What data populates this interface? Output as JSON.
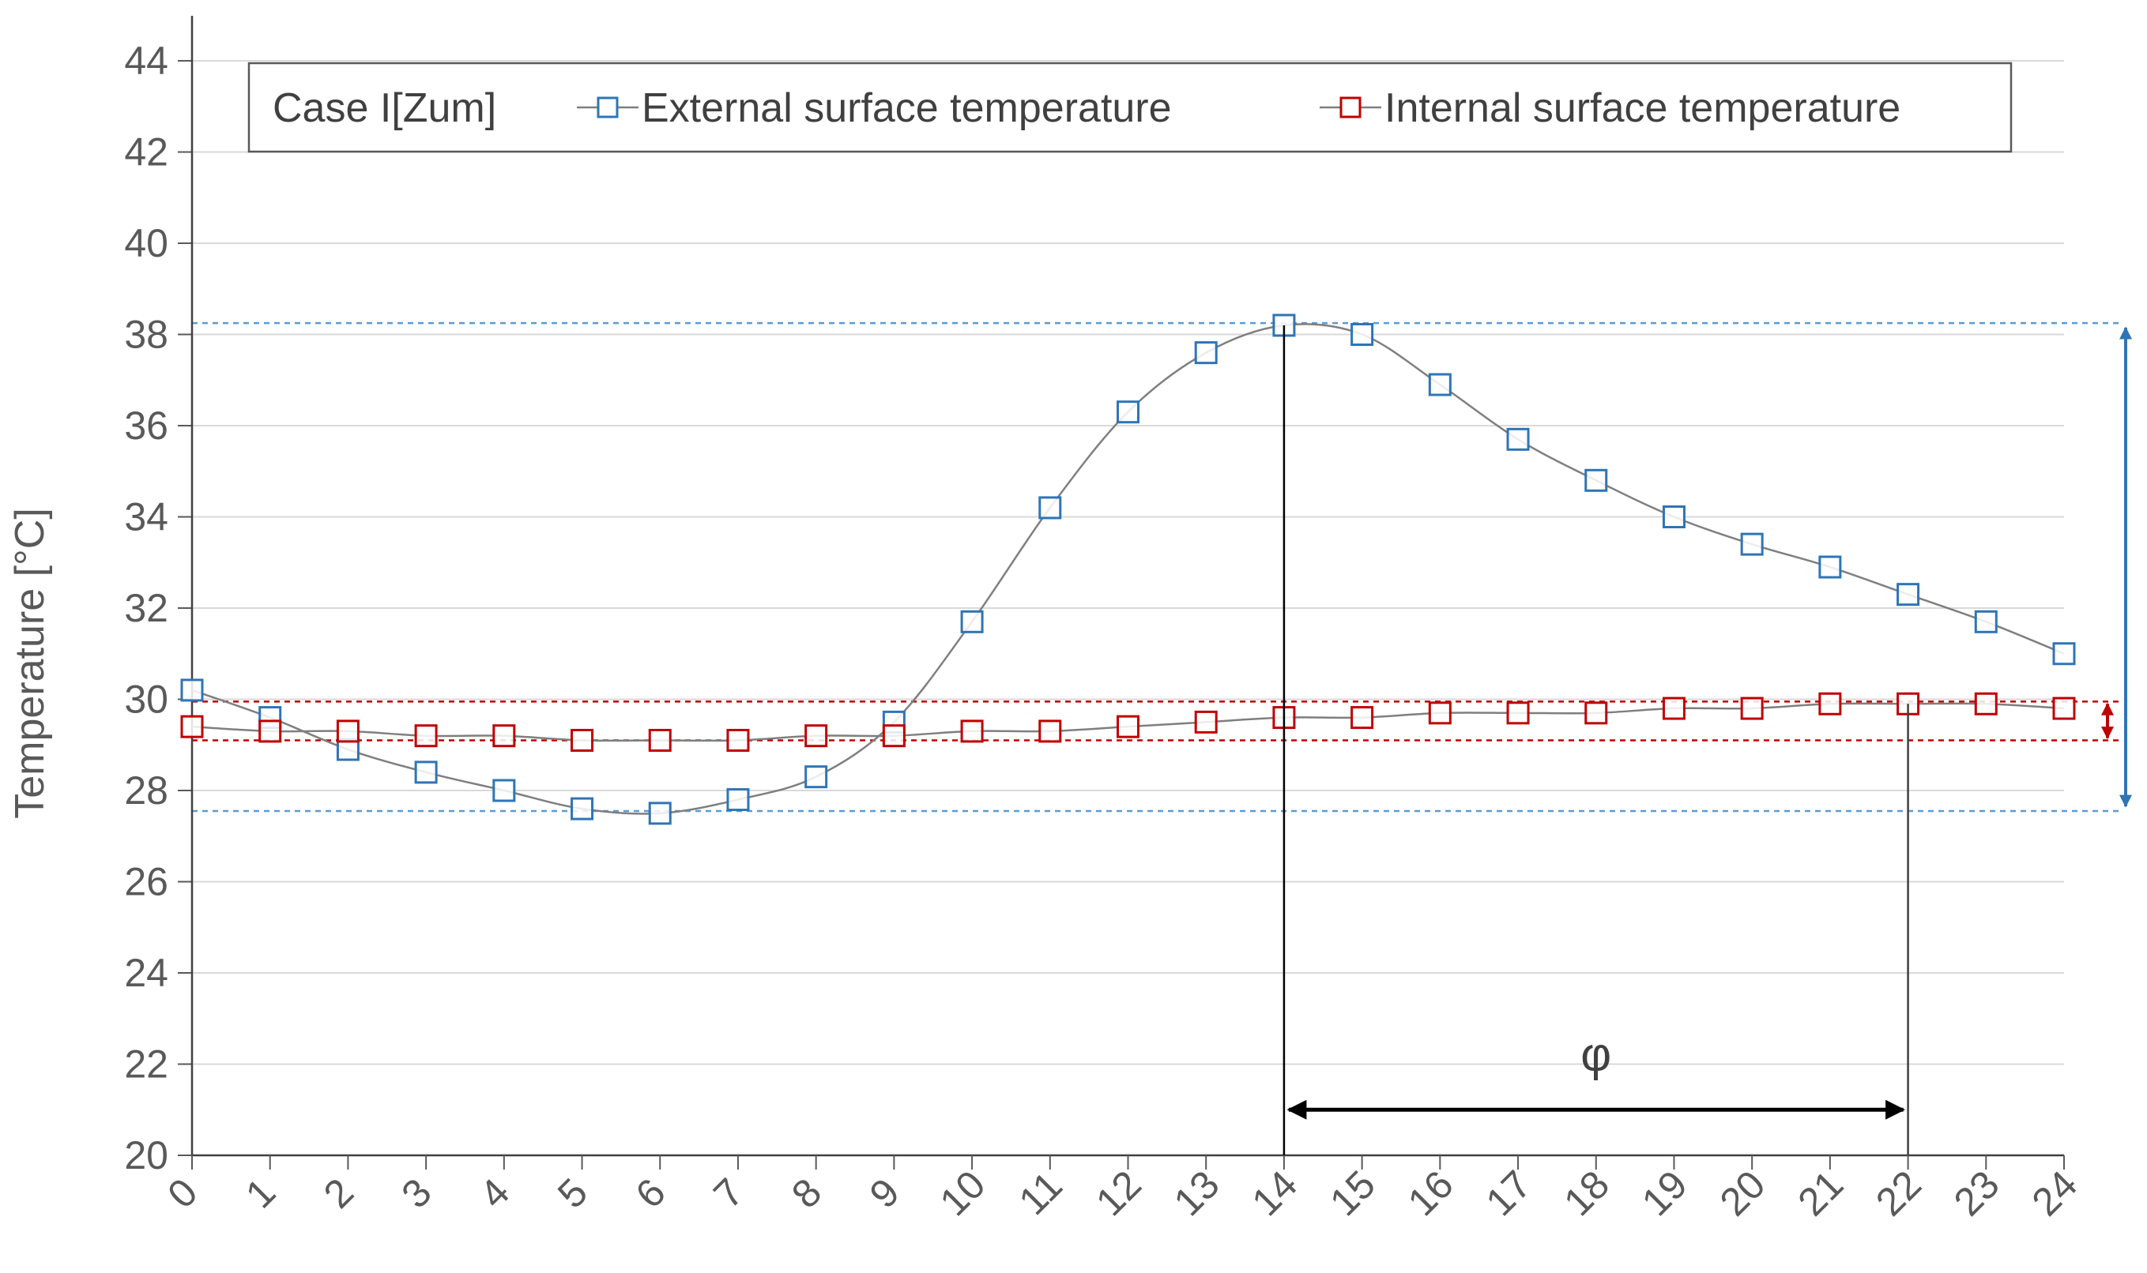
{
  "chart_data": {
    "type": "line",
    "title": "",
    "xlabel": "",
    "ylabel": "Temperature [°C]",
    "x": [
      0,
      1,
      2,
      3,
      4,
      5,
      6,
      7,
      8,
      9,
      10,
      11,
      12,
      13,
      14,
      15,
      16,
      17,
      18,
      19,
      20,
      21,
      22,
      23,
      24
    ],
    "xlim": [
      0,
      24
    ],
    "ylim": [
      20,
      44
    ],
    "y_ticks": [
      20,
      22,
      24,
      26,
      28,
      30,
      32,
      34,
      36,
      38,
      40,
      42,
      44
    ],
    "grid": true,
    "legend": {
      "placement": "top",
      "case_label": "Case I[Zum]"
    },
    "series": [
      {
        "name": "External surface temperature",
        "color": "#2e75b6",
        "marker": "square",
        "values": [
          30.2,
          29.6,
          28.9,
          28.4,
          28.0,
          27.6,
          27.5,
          27.8,
          28.3,
          29.5,
          31.7,
          34.2,
          36.3,
          37.6,
          38.2,
          38.0,
          36.9,
          35.7,
          34.8,
          34.0,
          33.4,
          32.9,
          32.3,
          31.7,
          31.0
        ]
      },
      {
        "name": "Internal surface temperature",
        "color": "#c00000",
        "marker": "square",
        "values": [
          29.4,
          29.3,
          29.3,
          29.2,
          29.2,
          29.1,
          29.1,
          29.1,
          29.2,
          29.2,
          29.3,
          29.3,
          29.4,
          29.5,
          29.6,
          29.6,
          29.7,
          29.7,
          29.7,
          29.8,
          29.8,
          29.9,
          29.9,
          29.9,
          29.8
        ]
      }
    ],
    "reference_lines": [
      {
        "name": "external-max",
        "y": 38.25,
        "color": "#5b9bd5"
      },
      {
        "name": "external-min",
        "y": 27.55,
        "color": "#5b9bd5"
      },
      {
        "name": "internal-max",
        "y": 29.95,
        "color": "#c00000"
      },
      {
        "name": "internal-min",
        "y": 29.1,
        "color": "#c00000"
      }
    ],
    "time_lag": {
      "label": "φ",
      "from_x": 14,
      "to_x": 22,
      "arrow_y": 21
    }
  }
}
